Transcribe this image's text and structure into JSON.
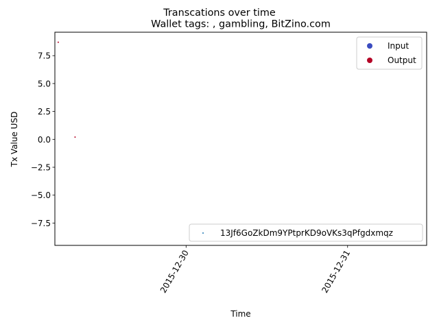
{
  "chart_data": {
    "type": "scatter",
    "suptitle": "Transcations over time",
    "title": "Wallet tags: , gambling, BitZino.com",
    "xlabel": "Time",
    "ylabel": "Tx Value USD",
    "xlim": [
      "2015-12-29T04:30",
      "2015-12-31T11:45"
    ],
    "ylim": [
      -9.5,
      9.6
    ],
    "x_ticks": [
      {
        "value": "2015-12-30",
        "label": "2015-12-30"
      },
      {
        "value": "2015-12-31",
        "label": "2015-12-31"
      }
    ],
    "y_ticks": [
      {
        "value": -7.5,
        "label": "−7.5"
      },
      {
        "value": -5.0,
        "label": "−5.0"
      },
      {
        "value": -2.5,
        "label": "−2.5"
      },
      {
        "value": 0.0,
        "label": "0.0"
      },
      {
        "value": 2.5,
        "label": "2.5"
      },
      {
        "value": 5.0,
        "label": "5.0"
      },
      {
        "value": 7.5,
        "label": "7.5"
      }
    ],
    "points": [
      {
        "x": "2015-12-29T05:00",
        "y": 8.7,
        "type": "Output"
      },
      {
        "x": "2015-12-29T07:30",
        "y": 0.2,
        "type": "Output"
      }
    ],
    "legend_types": {
      "placement": "upper right",
      "entries": [
        {
          "name": "Input",
          "color": "#3b4cc0"
        },
        {
          "name": "Output",
          "color": "#b40426"
        }
      ]
    },
    "legend_wallet": {
      "placement": "lower right",
      "entries": [
        {
          "name": "13Jf6GoZkDm9YPtprKD9oVKs3qPfgdxmqz",
          "color": "#1f77b4"
        }
      ]
    },
    "point_color": "#b40426",
    "grid": false
  }
}
